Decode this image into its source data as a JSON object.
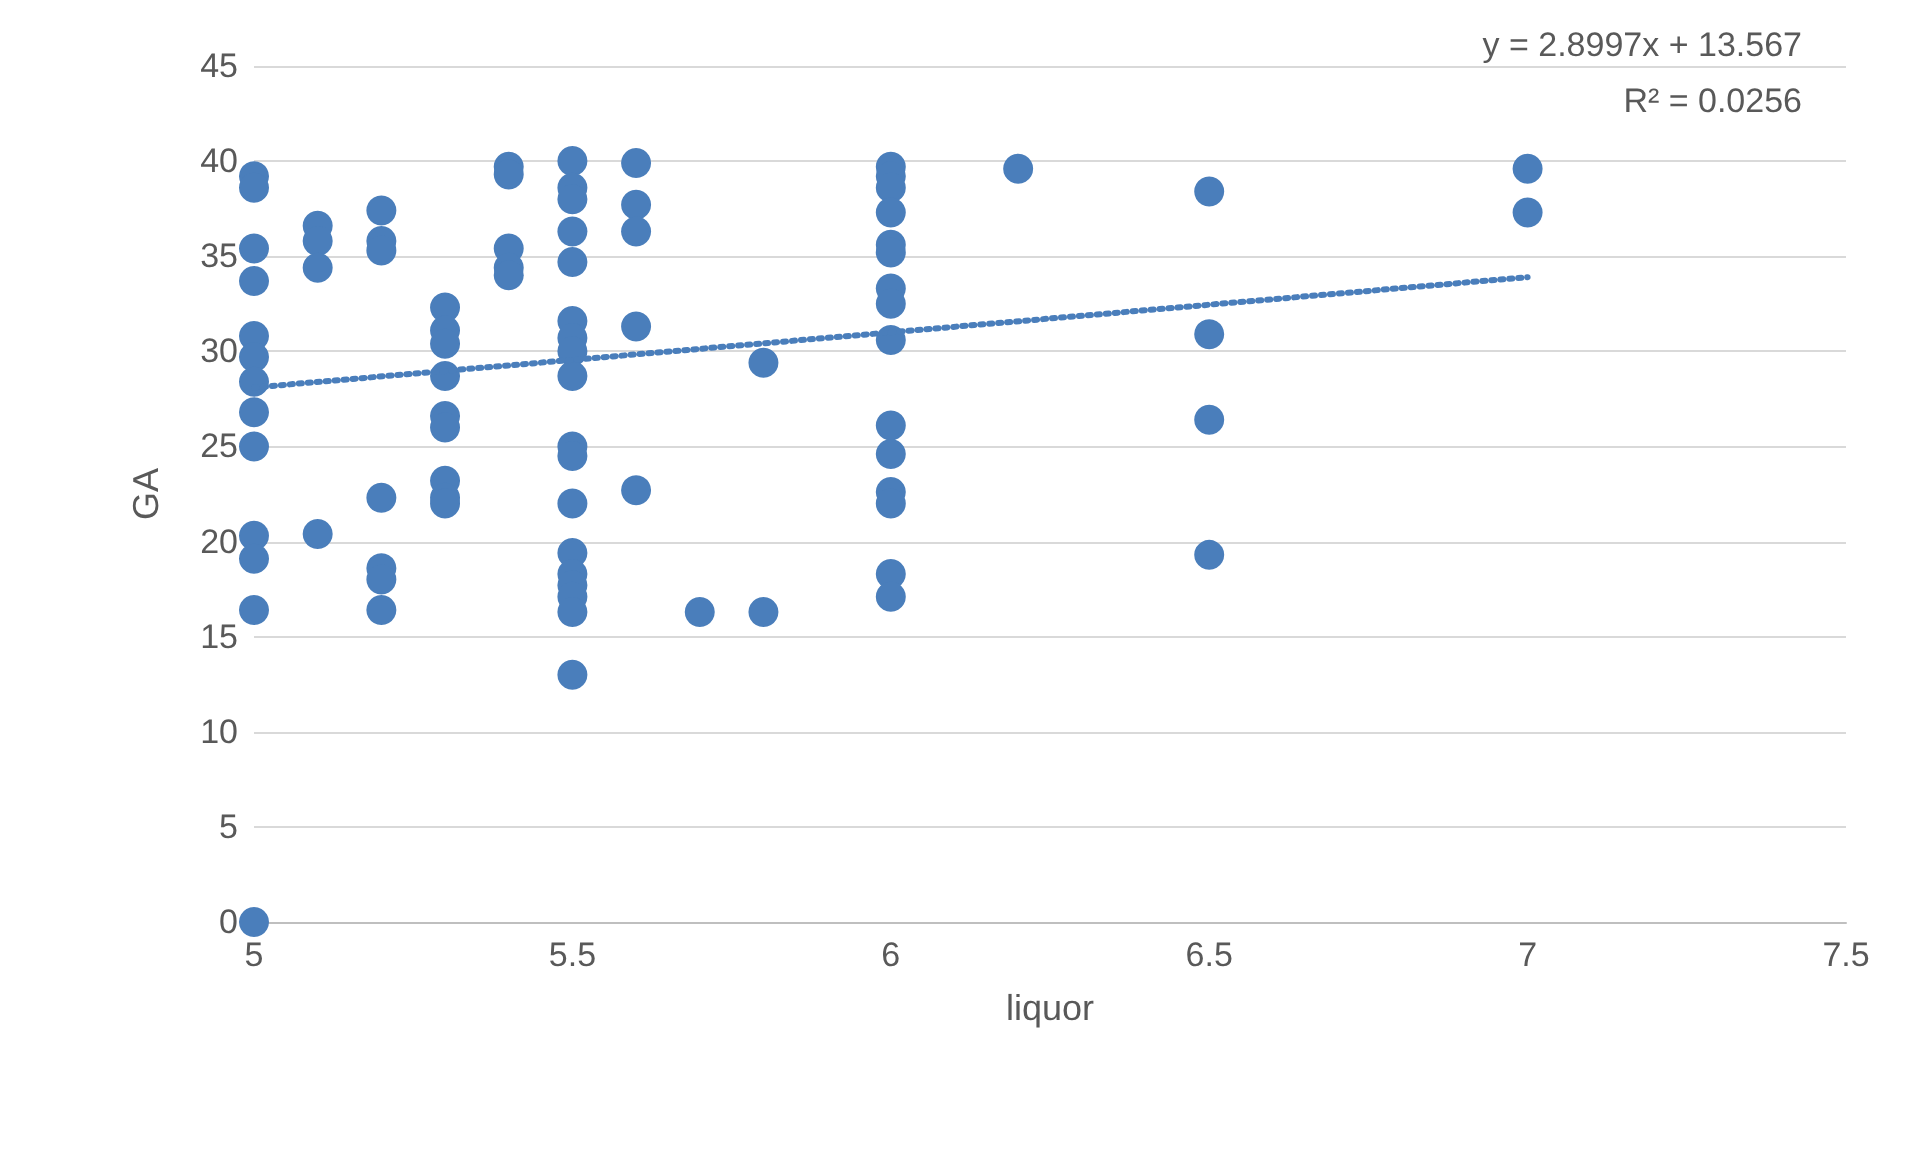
{
  "chart_data": {
    "type": "scatter",
    "xlabel": "liquor",
    "ylabel": "GA",
    "xlim": [
      5,
      7.5
    ],
    "xticks": [
      5,
      5.5,
      6,
      6.5,
      7,
      7.5
    ],
    "ylim": [
      0,
      45
    ],
    "yticks": [
      0,
      5,
      10,
      15,
      20,
      25,
      30,
      35,
      40,
      45
    ],
    "grid": "y",
    "marker": "circle",
    "annotations": [
      "y = 2.8997x + 13.567",
      "R² = 0.0256"
    ],
    "series": [
      {
        "color": "#4a7ebb",
        "x": [
          5,
          5,
          5,
          5,
          5,
          5,
          5,
          5,
          5,
          5,
          5,
          5,
          5,
          5.1,
          5.1,
          5.1,
          5.1,
          5.2,
          5.2,
          5.2,
          5.2,
          5.2,
          5.2,
          5.2,
          5.3,
          5.3,
          5.3,
          5.3,
          5.3,
          5.3,
          5.3,
          5.3,
          5.3,
          5.4,
          5.4,
          5.4,
          5.4,
          5.4,
          5.5,
          5.5,
          5.5,
          5.5,
          5.5,
          5.5,
          5.5,
          5.5,
          5.5,
          5.5,
          5.5,
          5.5,
          5.5,
          5.5,
          5.5,
          5.5,
          5.5,
          5.5,
          5.6,
          5.6,
          5.6,
          5.6,
          5.6,
          5.7,
          5.8,
          5.8,
          6,
          6,
          6,
          6,
          6,
          6,
          6,
          6,
          6,
          6,
          6,
          6,
          6,
          6,
          6,
          6.2,
          6.5,
          6.5,
          6.5,
          6.5,
          7,
          7
        ],
        "values": [
          39.2,
          38.6,
          35.4,
          33.7,
          30.8,
          29.7,
          28.4,
          26.8,
          25,
          20.3,
          19.1,
          16.4,
          0,
          36.6,
          35.8,
          34.4,
          20.4,
          37.4,
          35.8,
          35.3,
          22.3,
          18.6,
          18,
          16.4,
          32.3,
          31.1,
          30.4,
          28.7,
          26.6,
          26,
          23.2,
          22.3,
          22,
          39.7,
          39.3,
          35.4,
          34.4,
          34,
          40,
          38.6,
          38,
          36.3,
          34.7,
          31.6,
          30.7,
          30,
          28.7,
          25,
          24.5,
          22,
          19.4,
          18.3,
          17.7,
          17.1,
          16.3,
          13,
          39.9,
          37.7,
          36.3,
          31.3,
          22.7,
          16.3,
          29.4,
          16.3,
          39.7,
          39.2,
          38.6,
          37.3,
          35.6,
          35.2,
          33.3,
          32.5,
          30.6,
          26.1,
          24.6,
          22.6,
          22,
          18.3,
          17.1,
          39.6,
          38.4,
          30.9,
          26.4,
          19.3,
          39.6,
          37.3
        ]
      },
      {
        "type": "line",
        "color": "#4a7ebb",
        "line_style": "dotted",
        "marker": "none",
        "x": [
          5,
          7
        ],
        "values": [
          28.1,
          33.9
        ]
      }
    ]
  }
}
